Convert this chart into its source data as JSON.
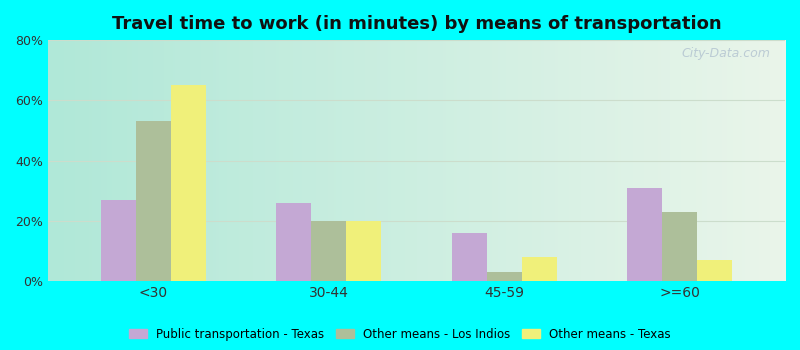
{
  "title": "Travel time to work (in minutes) by means of transportation",
  "categories": [
    "<30",
    "30-44",
    "45-59",
    ">=60"
  ],
  "series": {
    "Public transportation - Texas": [
      27,
      26,
      16,
      31
    ],
    "Other means - Los Indios": [
      53,
      20,
      3,
      23
    ],
    "Other means - Texas": [
      65,
      20,
      8,
      7
    ]
  },
  "colors": {
    "Public transportation - Texas": "#c4a8d4",
    "Other means - Los Indios": "#adbf9a",
    "Other means - Texas": "#f0f07a"
  },
  "ylim": [
    0,
    80
  ],
  "yticks": [
    0,
    20,
    40,
    60,
    80
  ],
  "ytick_labels": [
    "0%",
    "20%",
    "40%",
    "60%",
    "80%"
  ],
  "bg_color_left": "#b0e8d8",
  "bg_color_right": "#eaf5ea",
  "figure_background": "#00ffff",
  "watermark": "City-Data.com",
  "title_fontsize": 13,
  "bar_width": 0.2,
  "legend_position": "lower center"
}
